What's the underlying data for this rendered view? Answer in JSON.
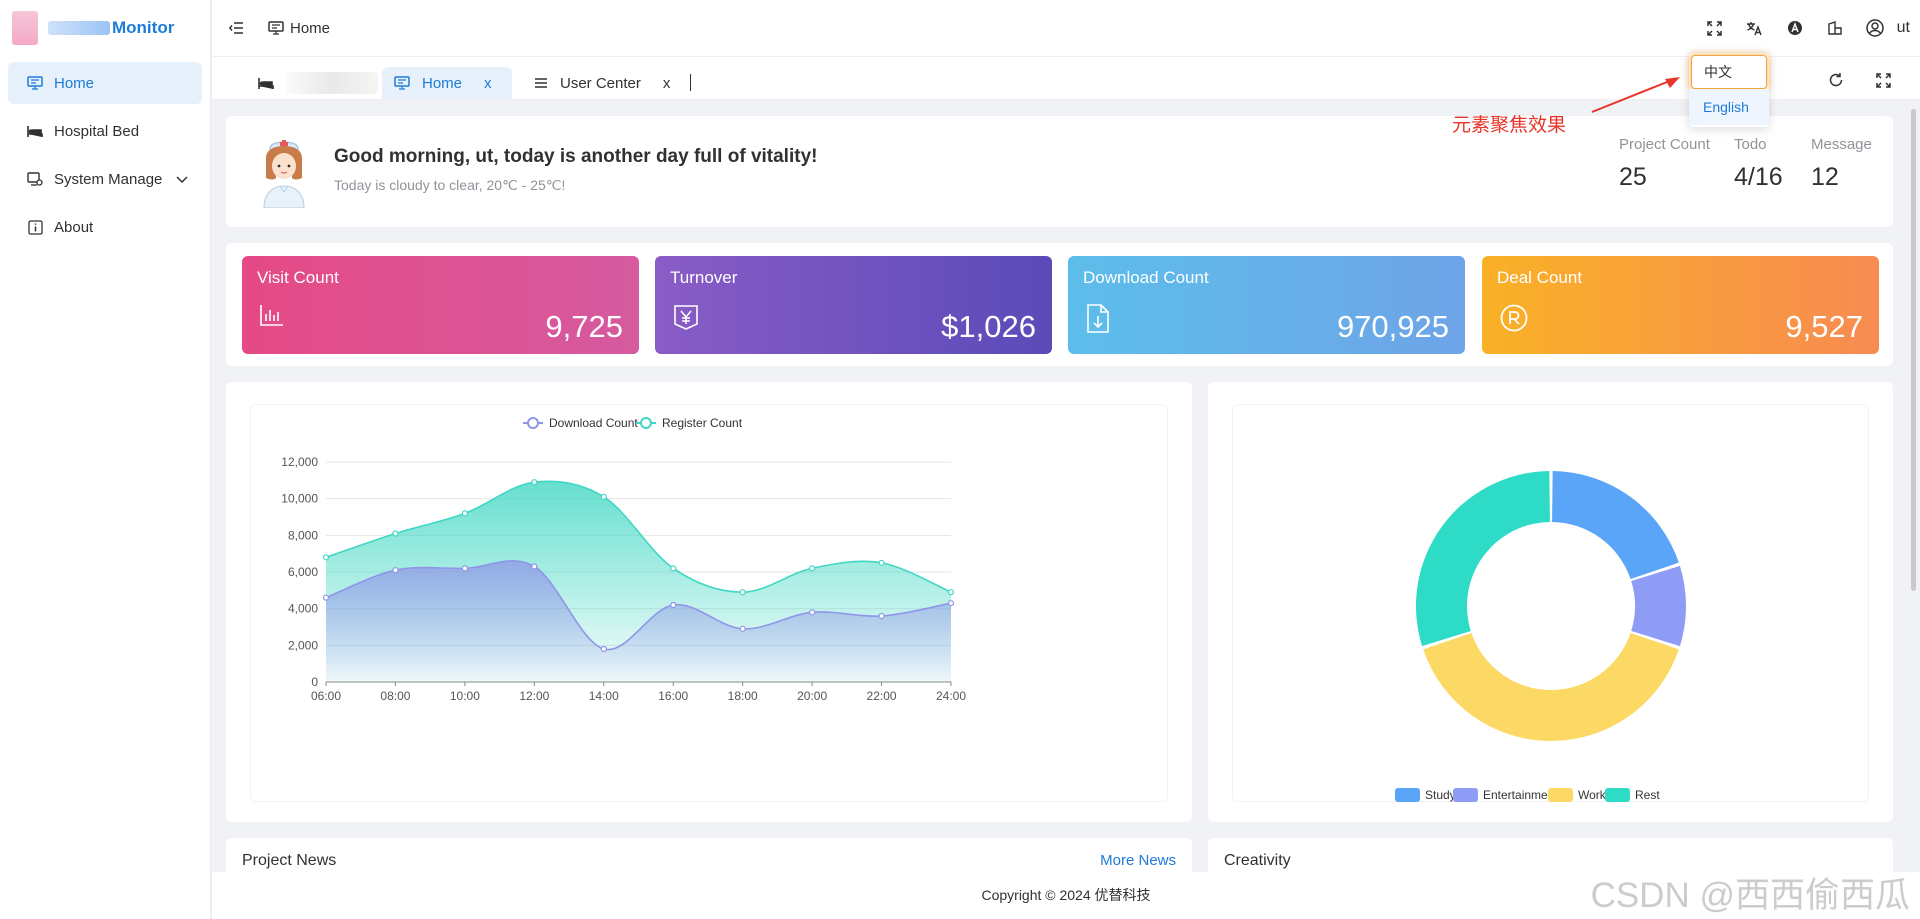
{
  "app": {
    "title": "Monitor"
  },
  "sidebar": {
    "items": [
      {
        "label": "Home",
        "icon": "monitor-icon",
        "active": true
      },
      {
        "label": "Hospital Bed",
        "icon": "bed-icon"
      },
      {
        "label": "System Manage",
        "icon": "settings-screen-icon",
        "expandable": true
      },
      {
        "label": "About",
        "icon": "info-icon"
      }
    ]
  },
  "header": {
    "breadcrumb": "Home",
    "user": "ut",
    "icons": [
      "fullscreen-icon",
      "translate-icon",
      "theme-icon",
      "layout-icon",
      "user-icon"
    ]
  },
  "tabs": [
    {
      "label": "Home",
      "close": "x",
      "active": true
    },
    {
      "label": "User Center",
      "close": "x"
    }
  ],
  "language_dropdown": {
    "options": [
      "中文",
      "English"
    ],
    "selected": "English",
    "focused": "中文"
  },
  "annotation": {
    "text": "元素聚焦效果"
  },
  "welcome": {
    "greeting": "Good morning, ut, today is another day full of vitality!",
    "weather": "Today is cloudy to clear, 20℃ - 25℃!",
    "stats": [
      {
        "label": "Project Count",
        "value": "25"
      },
      {
        "label": "Todo",
        "value": "4/16"
      },
      {
        "label": "Message",
        "value": "12"
      }
    ]
  },
  "kpis": [
    {
      "title": "Visit Count",
      "value": "9,725",
      "icon": "bar-chart-icon"
    },
    {
      "title": "Turnover",
      "value": "$1,026",
      "icon": "yen-icon"
    },
    {
      "title": "Download Count",
      "value": "970,925",
      "icon": "download-file-icon"
    },
    {
      "title": "Deal Count",
      "value": "9,527",
      "icon": "registered-icon"
    }
  ],
  "chart_data": [
    {
      "type": "area",
      "x": [
        "06:00",
        "08:00",
        "10:00",
        "12:00",
        "14:00",
        "16:00",
        "18:00",
        "20:00",
        "22:00",
        "24:00"
      ],
      "ylim": [
        0,
        12000
      ],
      "yticks": [
        "0",
        "2,000",
        "4,000",
        "6,000",
        "8,000",
        "10,000",
        "12,000"
      ],
      "series": [
        {
          "name": "Download Count",
          "color": "#8f95e8",
          "values": [
            4600,
            6100,
            6200,
            6300,
            1800,
            4200,
            2900,
            3800,
            3600,
            4300
          ]
        },
        {
          "name": "Register Count",
          "color": "#3fd7c3",
          "values": [
            6800,
            8100,
            9200,
            10900,
            10100,
            6200,
            4900,
            6200,
            6500,
            4900
          ]
        }
      ],
      "legend": "top-center",
      "grid": true
    },
    {
      "type": "pie",
      "donut": true,
      "legend": "bottom",
      "slices": [
        {
          "name": "Study",
          "value": 20,
          "color": "#5aa5f8"
        },
        {
          "name": "Entertainment",
          "value": 10,
          "color": "#8f9cf5"
        },
        {
          "name": "Work",
          "value": 40,
          "color": "#fcd964"
        },
        {
          "name": "Rest",
          "value": 30,
          "color": "#2ddbc6"
        }
      ]
    }
  ],
  "sections": {
    "news_title": "Project News",
    "news_more": "More News",
    "creativity_title": "Creativity"
  },
  "footer": {
    "copyright": "Copyright © 2024 优替科技"
  },
  "watermark": "CSDN @西西偷西瓜"
}
